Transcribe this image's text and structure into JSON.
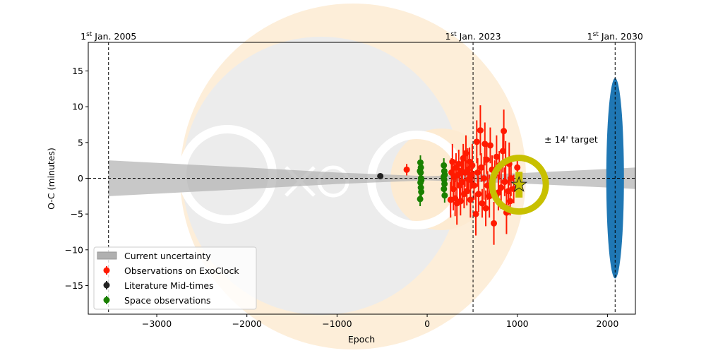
{
  "chart_data": {
    "type": "scatter",
    "title": "",
    "xlabel": "Epoch",
    "ylabel": "O-C (minutes)",
    "xlim": [
      -3760,
      2310
    ],
    "ylim": [
      -19,
      19
    ],
    "xticks": [
      -3000,
      -2000,
      -1000,
      0,
      1000,
      2000
    ],
    "xtick_labels": [
      "−3000",
      "−2000",
      "−1000",
      "0",
      "1000",
      "2000"
    ],
    "yticks": [
      -15,
      -10,
      -5,
      0,
      5,
      10,
      15
    ],
    "ytick_labels": [
      "−15",
      "−10",
      "−5",
      "0",
      "5",
      "10",
      "15"
    ],
    "grid": false,
    "legend_position": "lower-left",
    "date_markers": [
      {
        "epoch": -3535,
        "label_sup": "st",
        "label_pre": "1",
        "label_post": " Jan. 2005"
      },
      {
        "epoch": 509,
        "label_sup": "st",
        "label_pre": "1",
        "label_post": " Jan. 2023"
      },
      {
        "epoch": 2085,
        "label_sup": "st",
        "label_pre": "1",
        "label_post": " Jan. 2030"
      }
    ],
    "uncertainty_band": {
      "name": "Current uncertainty",
      "color": "#b0b0b0",
      "x": [
        -3535,
        -2000,
        -1000,
        0,
        1000,
        2000,
        2310
      ],
      "half_width": [
        2.5,
        1.5,
        0.8,
        0.3,
        0.7,
        1.3,
        1.5
      ]
    },
    "series": [
      {
        "name": "Observations on ExoClock",
        "color": "#ff1a00",
        "points": [
          [
            -227,
            1.2,
            0.8
          ],
          [
            260,
            -3.0,
            2.5
          ],
          [
            270,
            0.8,
            2
          ],
          [
            280,
            2.3,
            2.5
          ],
          [
            290,
            -1.5,
            3
          ],
          [
            300,
            0.2,
            2
          ],
          [
            310,
            -2.8,
            2.5
          ],
          [
            320,
            1.5,
            2
          ],
          [
            330,
            -3.5,
            3
          ],
          [
            340,
            0.5,
            1.5
          ],
          [
            350,
            2.0,
            2
          ],
          [
            360,
            -1.0,
            2.5
          ],
          [
            370,
            -3.2,
            2
          ],
          [
            380,
            1.0,
            2
          ],
          [
            390,
            -0.5,
            3
          ],
          [
            400,
            2.8,
            2
          ],
          [
            410,
            -2.2,
            2
          ],
          [
            420,
            0.8,
            2
          ],
          [
            430,
            3.5,
            2.5
          ],
          [
            440,
            -1.8,
            2
          ],
          [
            450,
            1.2,
            3
          ],
          [
            460,
            -0.2,
            2
          ],
          [
            470,
            2.3,
            2
          ],
          [
            480,
            -3.0,
            2.5
          ],
          [
            490,
            0.5,
            2
          ],
          [
            500,
            1.8,
            3
          ],
          [
            520,
            -1.0,
            2
          ],
          [
            540,
            -5.0,
            3
          ],
          [
            550,
            5.1,
            3
          ],
          [
            560,
            0.8,
            2
          ],
          [
            570,
            -2.2,
            2.5
          ],
          [
            590,
            6.7,
            3.5
          ],
          [
            600,
            1.5,
            2
          ],
          [
            610,
            -3.5,
            2
          ],
          [
            630,
            0.0,
            3
          ],
          [
            640,
            4.8,
            3
          ],
          [
            650,
            -4.2,
            2.5
          ],
          [
            660,
            2.6,
            2
          ],
          [
            670,
            -1.0,
            2
          ],
          [
            690,
            -2.5,
            3
          ],
          [
            700,
            4.6,
            2.5
          ],
          [
            720,
            1.2,
            2
          ],
          [
            740,
            -6.3,
            3
          ],
          [
            750,
            0.5,
            2
          ],
          [
            770,
            3.0,
            3
          ],
          [
            790,
            -2.0,
            2.5
          ],
          [
            800,
            1.8,
            2
          ],
          [
            820,
            -1.3,
            3
          ],
          [
            840,
            3.8,
            3
          ],
          [
            850,
            6.6,
            3
          ],
          [
            860,
            -0.5,
            2
          ],
          [
            870,
            2.2,
            3
          ],
          [
            880,
            -4.8,
            3
          ],
          [
            900,
            -1.8,
            2
          ],
          [
            910,
            2.0,
            3
          ],
          [
            920,
            -3.2,
            2
          ],
          [
            930,
            0.0,
            2.5
          ],
          [
            960,
            -1.5,
            2
          ],
          [
            1000,
            1.5,
            1
          ]
        ]
      },
      {
        "name": "Literature Mid-times",
        "color": "#222222",
        "points": [
          [
            -520,
            0.3,
            0.4
          ]
        ]
      },
      {
        "name": "Space observations",
        "color": "#1a8000",
        "points": [
          [
            -75,
            2.2,
            1
          ],
          [
            -70,
            1.5,
            1
          ],
          [
            -72,
            0.8,
            1
          ],
          [
            -68,
            0.0,
            1
          ],
          [
            -74,
            -0.6,
            1
          ],
          [
            -70,
            -1.3,
            1
          ],
          [
            -66,
            -1.9,
            1
          ],
          [
            -78,
            -2.9,
            1
          ],
          [
            -80,
            1.0,
            1
          ],
          [
            -65,
            -0.3,
            1
          ],
          [
            185,
            1.8,
            1
          ],
          [
            190,
            1.0,
            1
          ],
          [
            195,
            0.5,
            1
          ],
          [
            188,
            -0.2,
            1
          ],
          [
            192,
            -0.8,
            1
          ],
          [
            186,
            -1.5,
            1
          ],
          [
            194,
            -2.4,
            1
          ],
          [
            183,
            0.2,
            1
          ]
        ]
      }
    ],
    "target": {
      "epoch": 1019,
      "oc": -0.9,
      "err": 1.8,
      "marker": "star",
      "color": "#c8c000"
    },
    "future_uncertainty": {
      "epoch": 2085,
      "half_width": 14,
      "color": "#1f77b4"
    },
    "annotation": "± 14' target"
  }
}
